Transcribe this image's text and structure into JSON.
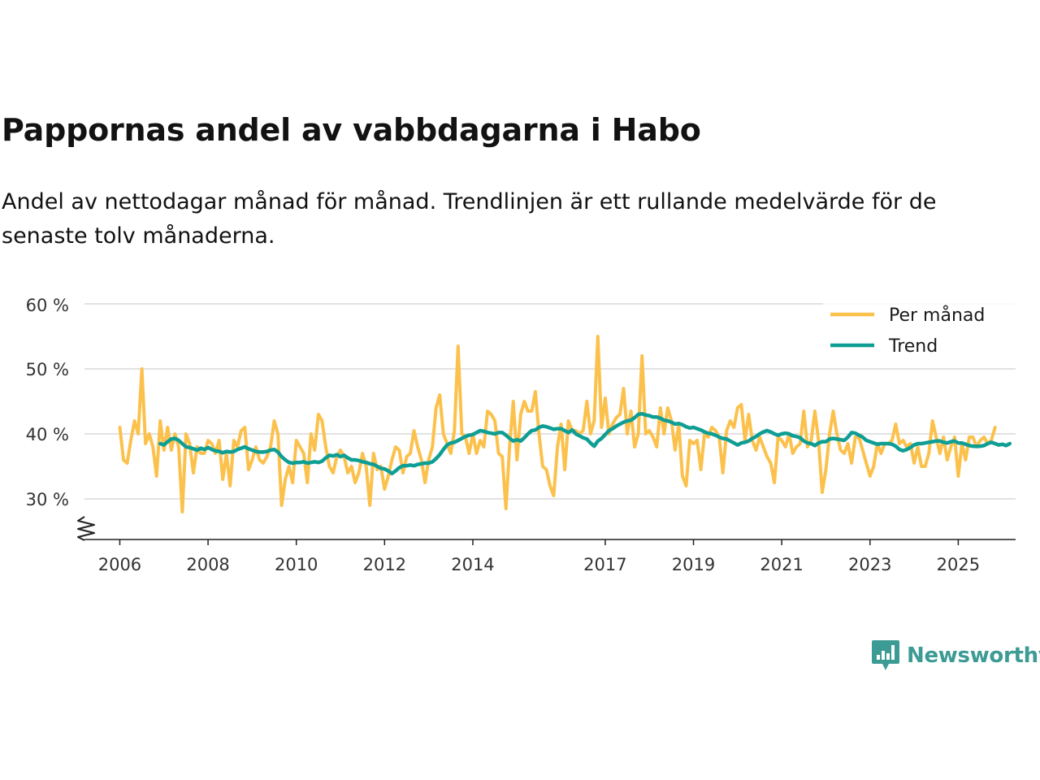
{
  "title": "Pappornas andel av vabbdagarna i Habo",
  "subtitle": "Andel av nettodagar månad för månad. Trendlinjen är ett rullande medelvärde för de senaste tolv månaderna.",
  "brand": "Newsworthy",
  "colors": {
    "monthly": "#fbc14c",
    "trend": "#0f9e94",
    "grid": "#d9d9d9",
    "axis": "#222222",
    "brand": "#3d9b95"
  },
  "chart_data": {
    "type": "line",
    "title": "Pappornas andel av vabbdagarna i Habo",
    "xlabel": "",
    "ylabel": "",
    "ylim": [
      24,
      60
    ],
    "yticks": [
      30,
      40,
      50,
      60
    ],
    "ytick_labels": [
      "30 %",
      "40 %",
      "50 %",
      "60 %"
    ],
    "xticks": [
      2006,
      2008,
      2010,
      2012,
      2014,
      2017,
      2019,
      2021,
      2023,
      2025
    ],
    "xtick_labels": [
      "2006",
      "2008",
      "2010",
      "2012",
      "2014",
      "2017",
      "2019",
      "2021",
      "2023",
      "2025"
    ],
    "x_range": [
      2005.2,
      2026.3
    ],
    "axis_break": true,
    "legend": {
      "position": "top-right",
      "entries": [
        "Per månad",
        "Trend"
      ]
    },
    "grid": true,
    "series": [
      {
        "name": "Per månad",
        "x_start": 2006.0,
        "step": 0.0833333,
        "values": [
          41,
          36,
          35.5,
          39,
          42,
          40,
          50,
          38.5,
          40,
          38,
          33.5,
          42,
          37.5,
          41,
          37.5,
          40,
          38,
          28,
          40,
          38.5,
          34,
          38,
          37,
          37,
          39,
          38.5,
          37,
          39,
          33,
          37,
          32,
          39,
          38,
          40.5,
          41,
          34.5,
          36,
          38,
          36,
          35.5,
          36.5,
          38,
          42,
          40,
          29,
          33,
          35,
          32.5,
          39,
          38,
          37,
          32.5,
          40,
          37.5,
          43,
          42,
          38,
          35,
          34,
          36.5,
          37.5,
          36.5,
          34,
          35,
          32.5,
          34,
          37,
          35,
          29,
          37,
          34.5,
          35,
          31.5,
          33.5,
          36,
          38,
          37.5,
          34,
          36.5,
          37,
          40.5,
          38,
          36,
          32.5,
          36,
          38,
          44,
          46,
          40,
          38.5,
          37,
          40.5,
          53.5,
          40,
          39.5,
          37,
          40,
          37,
          39,
          38,
          43.5,
          43,
          42,
          37,
          36.5,
          28.5,
          38,
          45,
          36,
          43,
          45,
          43.5,
          43.5,
          46.5,
          40,
          35,
          34.5,
          32,
          30.5,
          38,
          41.5,
          34.5,
          42,
          40.5,
          40.5,
          40,
          40.5,
          45,
          40,
          42,
          55,
          41,
          45.5,
          40,
          41.5,
          42.5,
          43,
          47,
          40,
          43.5,
          38,
          40,
          52,
          40,
          40.5,
          39.5,
          38,
          44,
          40,
          44,
          42,
          37.5,
          41.5,
          33.5,
          32,
          39,
          38.5,
          39,
          34.5,
          40,
          39.5,
          41,
          40.5,
          39.5,
          34,
          40.5,
          42,
          41,
          44,
          44.5,
          39,
          43,
          39,
          37.5,
          39.5,
          38,
          36.5,
          35.5,
          32.5,
          39.5,
          39,
          38,
          40,
          37,
          38,
          38.5,
          43.5,
          38,
          39,
          43.5,
          39,
          31,
          34.5,
          40,
          43.5,
          40,
          37.5,
          37,
          38.5,
          35.5,
          39.5,
          39.5,
          37.5,
          35.5,
          33.5,
          35,
          38.5,
          37,
          38.5,
          38.5,
          39,
          41.5,
          38.5,
          39,
          38,
          38.5,
          35.5,
          38,
          35,
          35,
          37,
          42,
          39.5,
          37,
          39.5,
          36,
          38,
          39.5,
          33.5,
          38.5,
          36,
          39.5,
          39.5,
          38,
          39,
          39.5,
          38.5,
          39,
          41
        ]
      },
      {
        "name": "Trend",
        "x_start": 2006.9167,
        "step": 0.0833333,
        "values": [
          38.5,
          38.3,
          38.8,
          39.2,
          39.3,
          39,
          38.5,
          38,
          37.9,
          37.7,
          37.5,
          37.8,
          37.6,
          37.9,
          37.6,
          37.4,
          37.3,
          37.1,
          37.3,
          37.2,
          37.3,
          37.6,
          37.8,
          38,
          37.7,
          37.5,
          37.3,
          37.2,
          37.2,
          37.3,
          37.5,
          37.6,
          37.2,
          36.5,
          36,
          35.6,
          35.5,
          35.6,
          35.6,
          35.7,
          35.5,
          35.6,
          35.7,
          35.6,
          35.8,
          36.3,
          36.7,
          36.6,
          36.8,
          36.5,
          36.7,
          36.3,
          36,
          36,
          35.9,
          35.7,
          35.6,
          35.4,
          35.3,
          35,
          34.7,
          34.6,
          34.3,
          33.9,
          34.3,
          34.8,
          35.1,
          35.1,
          35.2,
          35.1,
          35.3,
          35.4,
          35.5,
          35.5,
          35.7,
          36.2,
          36.8,
          37.6,
          38.3,
          38.6,
          38.7,
          39,
          39.3,
          39.6,
          39.8,
          39.9,
          40.2,
          40.5,
          40.4,
          40.2,
          40.1,
          40,
          40.2,
          40.2,
          39.8,
          39.3,
          38.9,
          39.1,
          38.9,
          39.4,
          40,
          40.5,
          40.6,
          41,
          41.2,
          41.1,
          40.9,
          40.7,
          40.8,
          40.8,
          40.5,
          40.2,
          40.6,
          40,
          39.7,
          39.4,
          39.2,
          38.6,
          38.1,
          38.9,
          39.3,
          39.9,
          40.5,
          40.8,
          41.2,
          41.5,
          41.8,
          42,
          42.1,
          42.5,
          43,
          43.1,
          42.9,
          42.8,
          42.6,
          42.6,
          42.4,
          42.1,
          42,
          41.8,
          41.5,
          41.6,
          41.4,
          41.1,
          40.9,
          41,
          40.8,
          40.6,
          40.3,
          40.1,
          40,
          39.8,
          39.5,
          39.3,
          39.2,
          38.9,
          38.6,
          38.3,
          38.6,
          38.7,
          38.9,
          39.3,
          39.6,
          40,
          40.3,
          40.5,
          40.3,
          40,
          39.8,
          40,
          40.1,
          40,
          39.7,
          39.6,
          39.4,
          38.9,
          38.6,
          38.5,
          38.2,
          38.6,
          38.8,
          38.8,
          39.2,
          39.3,
          39.2,
          39.1,
          39,
          39.5,
          40.2,
          40.1,
          39.8,
          39.5,
          39,
          38.8,
          38.6,
          38.4,
          38.5,
          38.5,
          38.5,
          38.4,
          38.1,
          37.6,
          37.4,
          37.6,
          37.9,
          38.3,
          38.5,
          38.5,
          38.6,
          38.7,
          38.8,
          38.9,
          38.9,
          38.7,
          38.6,
          38.8,
          38.9,
          38.6,
          38.6,
          38.4,
          38.2,
          38.1,
          38.1,
          38.1,
          38.2,
          38.5,
          38.7,
          38.5,
          38.3,
          38.4,
          38.2,
          38.5
        ]
      }
    ]
  }
}
